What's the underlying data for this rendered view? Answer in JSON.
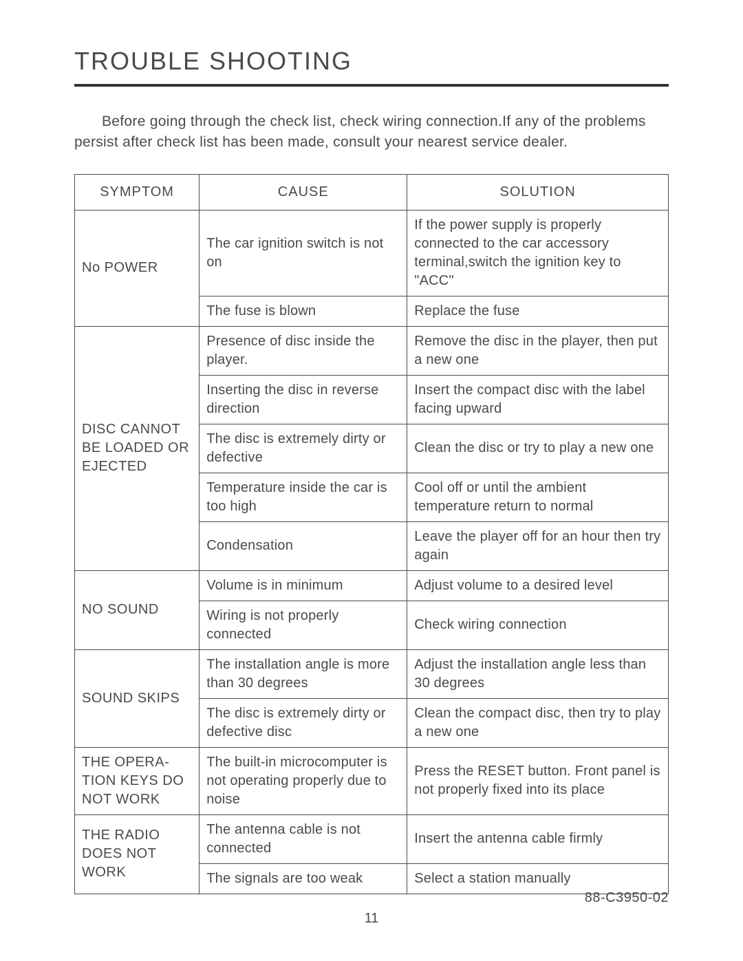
{
  "title": "TROUBLE SHOOTING",
  "intro": "Before going through the check list, check wiring connection.If any of the problems persist after check list has been made, consult your nearest service dealer.",
  "headers": {
    "symptom": "SYMPTOM",
    "cause": "CAUSE",
    "solution": "SOLUTION"
  },
  "rows": [
    {
      "symptom": "No POWER",
      "symptom_rowspan": 2,
      "cause": "The car ignition switch is not on",
      "solution": "If the power supply is properly connected to the car accessory terminal,switch the ignition key to  \"ACC\""
    },
    {
      "cause": "The fuse is blown",
      "solution": "Replace the fuse"
    },
    {
      "symptom": "DISC CANNOT BE LOADED OR EJECTED",
      "symptom_rowspan": 5,
      "cause": "Presence of disc inside the player.",
      "solution": "Remove the disc in the player, then put a new one"
    },
    {
      "cause": "Inserting the disc in reverse direction",
      "solution": "Insert the compact disc with the label facing upward"
    },
    {
      "cause": "The disc is extremely dirty or defective",
      "solution": "Clean the disc or try to play a new one"
    },
    {
      "cause": "Temperature inside the car is too high",
      "solution": "Cool off or until the ambient temperature return to normal"
    },
    {
      "cause": "Condensation",
      "solution": "Leave the player off for an hour then try again"
    },
    {
      "symptom": "NO SOUND",
      "symptom_rowspan": 2,
      "cause": "Volume is in minimum",
      "solution": "Adjust volume to a desired level"
    },
    {
      "cause": "Wiring is not properly connected",
      "solution": "Check wiring connection"
    },
    {
      "symptom": "SOUND SKIPS",
      "symptom_rowspan": 2,
      "cause": "The installation angle is more than 30 degrees",
      "solution": "Adjust the installation angle less than 30 degrees"
    },
    {
      "cause": "The disc is extremely dirty or defective disc",
      "solution": "Clean the compact disc, then try to play a new one"
    },
    {
      "symptom": "THE OPERA-TION KEYS DO NOT WORK",
      "symptom_rowspan": 1,
      "cause": "The built-in microcomputer is not operating properly due to noise",
      "solution": "Press the RESET button. Front panel is not properly fixed into its place"
    },
    {
      "symptom": "THE RADIO DOES NOT WORK",
      "symptom_rowspan": 2,
      "cause": "The antenna cable is not connected",
      "solution": "Insert the antenna cable firmly"
    },
    {
      "cause": "The signals are too weak",
      "solution": "Select a station manually"
    }
  ],
  "page_number": "11",
  "doc_code": "88-C3950-02"
}
